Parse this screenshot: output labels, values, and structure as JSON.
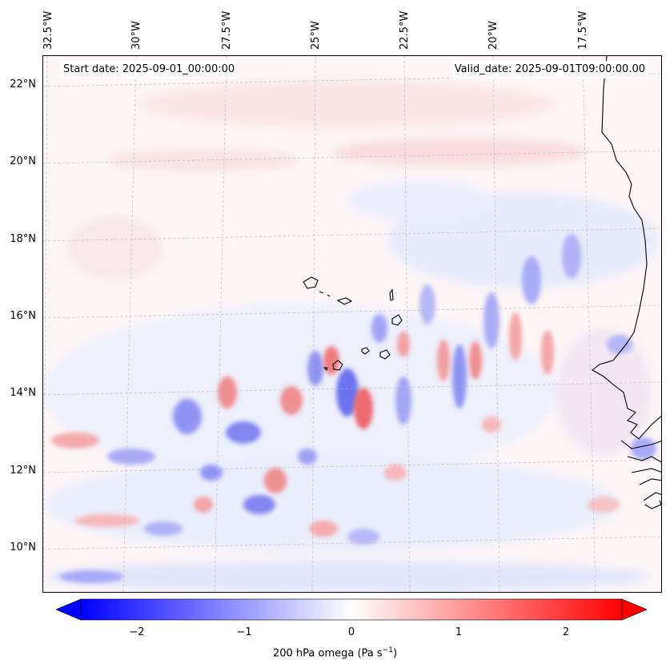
{
  "map": {
    "start_date": "Start date: 2025-09-01_00:00:00",
    "valid_date": "Valid_date: 2025-09-01T09:00:00.00",
    "lat_labels": [
      "22°N",
      "20°N",
      "18°N",
      "16°N",
      "14°N",
      "12°N",
      "10°N"
    ],
    "lon_labels": [
      "32.5°W",
      "30°W",
      "27.5°W",
      "25°W",
      "22.5°W",
      "20°W",
      "17.5°W"
    ],
    "gridlines": true,
    "coastlines": true
  },
  "colorbar": {
    "label_main": "200 hPa omega (Pa s",
    "label_exp": "−1",
    "label_close": ")",
    "ticks": [
      "−2",
      "−1",
      "0",
      "1",
      "2"
    ],
    "range": [
      -2.6,
      2.6
    ],
    "extend": "both",
    "colormap": "bwr",
    "low_color": "#0000ff",
    "mid_color": "#ffffff",
    "high_color": "#ff0000"
  }
}
